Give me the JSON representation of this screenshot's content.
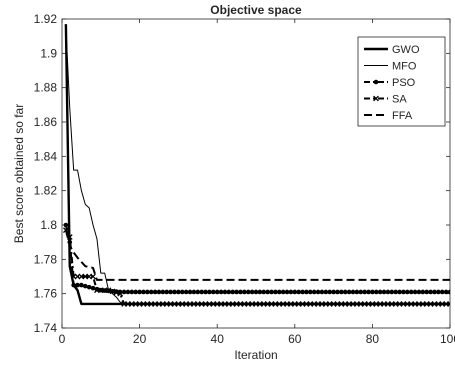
{
  "chart_data": {
    "type": "line",
    "title": "Objective space",
    "xlabel": "Iteration",
    "ylabel": "Best score obtained so far",
    "xlim": [
      0,
      100
    ],
    "ylim": [
      1.74,
      1.92
    ],
    "xticks": [
      0,
      20,
      40,
      60,
      80,
      100
    ],
    "yticks": [
      1.74,
      1.76,
      1.78,
      1.8,
      1.82,
      1.84,
      1.86,
      1.88,
      1.9,
      1.92
    ],
    "grid": false,
    "legend_position": "top-right",
    "series": [
      {
        "name": "GWO",
        "x": [
          1,
          2,
          3,
          4,
          5,
          16,
          100
        ],
        "y": [
          1.917,
          1.776,
          1.765,
          1.762,
          1.754,
          1.754,
          1.754
        ]
      },
      {
        "name": "MFO",
        "x": [
          1,
          2,
          3,
          4,
          5,
          6,
          7,
          8,
          9,
          10,
          11,
          12,
          14,
          15,
          16,
          100
        ],
        "y": [
          1.915,
          1.868,
          1.832,
          1.832,
          1.82,
          1.812,
          1.81,
          1.8,
          1.792,
          1.772,
          1.772,
          1.762,
          1.758,
          1.755,
          1.754,
          1.754
        ]
      },
      {
        "name": "PSO",
        "x": [
          1,
          2,
          3,
          5,
          10,
          15,
          16,
          100
        ],
        "y": [
          1.8,
          1.79,
          1.765,
          1.765,
          1.762,
          1.761,
          1.761,
          1.761
        ]
      },
      {
        "name": "SA",
        "x": [
          1,
          2,
          3,
          5,
          8,
          9,
          12,
          15,
          16,
          100
        ],
        "y": [
          1.797,
          1.793,
          1.77,
          1.77,
          1.77,
          1.762,
          1.762,
          1.76,
          1.754,
          1.754
        ]
      },
      {
        "name": "FFA",
        "x": [
          1,
          2,
          3,
          4,
          6,
          8,
          9,
          15,
          100
        ],
        "y": [
          1.797,
          1.788,
          1.784,
          1.781,
          1.776,
          1.775,
          1.768,
          1.768,
          1.768
        ]
      }
    ]
  }
}
